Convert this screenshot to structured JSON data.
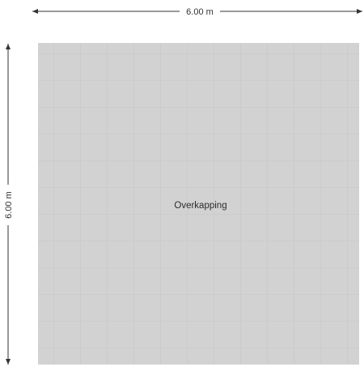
{
  "plan": {
    "width_dimension": "6.00 m",
    "height_dimension": "6.00 m",
    "room_name": "Overkapping"
  },
  "colors": {
    "room_fill": "#d2d2d2",
    "grid_line": "#c6c6c6",
    "dimension_line": "#333333",
    "background": "#ffffff"
  }
}
